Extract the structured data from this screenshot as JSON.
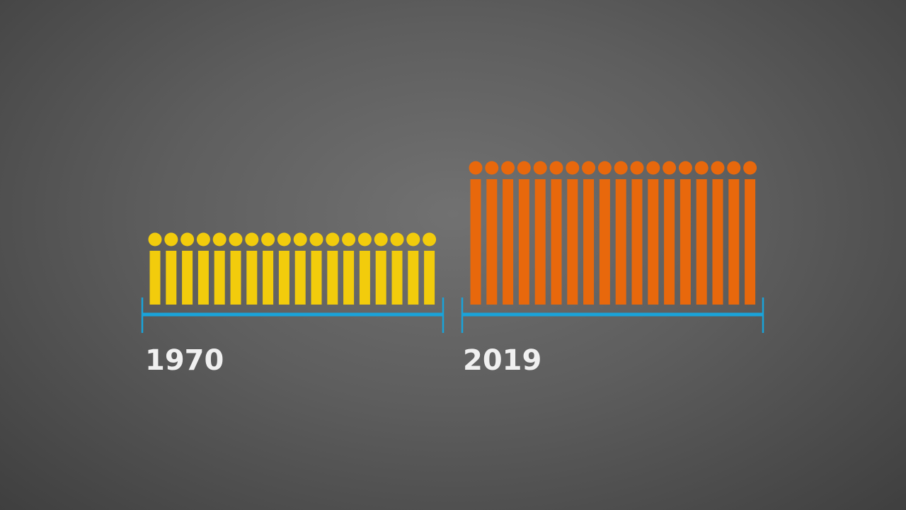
{
  "groups": [
    {
      "label": "1970",
      "color": "#f2cc0c"
    },
    {
      "label": "2019",
      "color": "#e8680c"
    }
  ]
}
